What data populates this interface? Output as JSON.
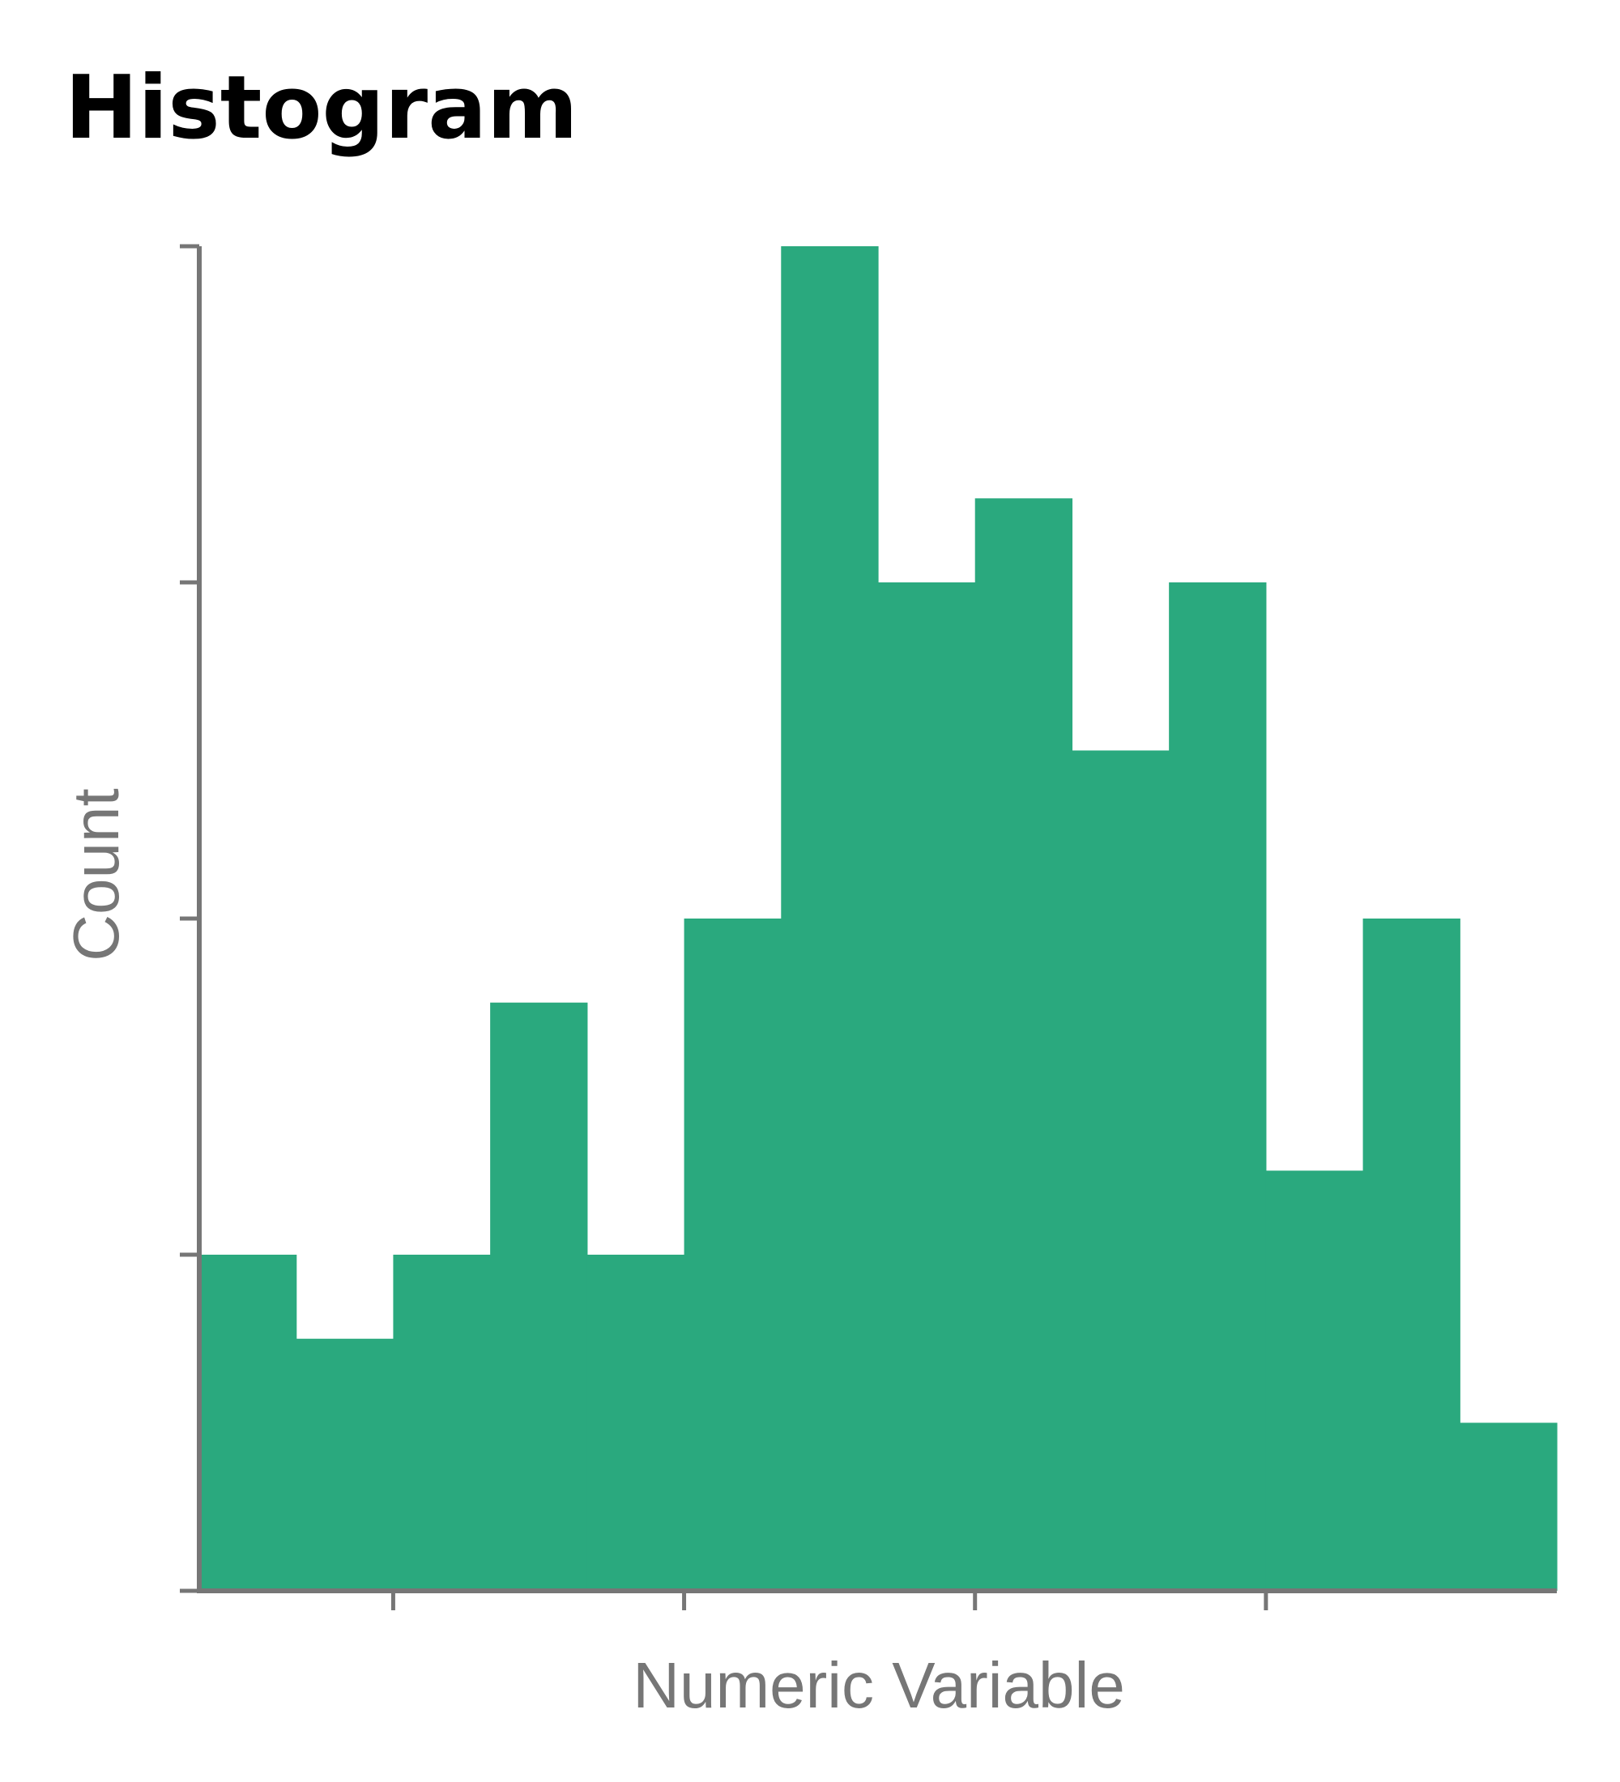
{
  "chart_data": {
    "type": "bar",
    "title": "Histogram",
    "xlabel": "Numeric Variable",
    "ylabel": "Count",
    "bins": [
      {
        "x0": 0,
        "x1": 1,
        "count": 4
      },
      {
        "x0": 1,
        "x1": 2,
        "count": 3
      },
      {
        "x0": 2,
        "x1": 3,
        "count": 4
      },
      {
        "x0": 3,
        "x1": 4,
        "count": 7
      },
      {
        "x0": 4,
        "x1": 5,
        "count": 4
      },
      {
        "x0": 5,
        "x1": 6,
        "count": 8
      },
      {
        "x0": 6,
        "x1": 7,
        "count": 16
      },
      {
        "x0": 7,
        "x1": 8,
        "count": 12
      },
      {
        "x0": 8,
        "x1": 9,
        "count": 13
      },
      {
        "x0": 9,
        "x1": 10,
        "count": 10
      },
      {
        "x0": 10,
        "x1": 11,
        "count": 12
      },
      {
        "x0": 11,
        "x1": 12,
        "count": 5
      },
      {
        "x0": 12,
        "x1": 13,
        "count": 8
      },
      {
        "x0": 13,
        "x1": 14,
        "count": 2
      }
    ],
    "xlim": [
      0,
      14
    ],
    "ylim": [
      0,
      16
    ],
    "y_ticks": [
      0,
      4,
      8,
      12,
      16
    ],
    "x_ticks": [
      2,
      5,
      8,
      11
    ],
    "tick_labels_shown": false,
    "grid": false,
    "colors": {
      "bar": "#2aa97e",
      "axis": "#767676",
      "title": "#000000",
      "label": "#767676"
    }
  }
}
